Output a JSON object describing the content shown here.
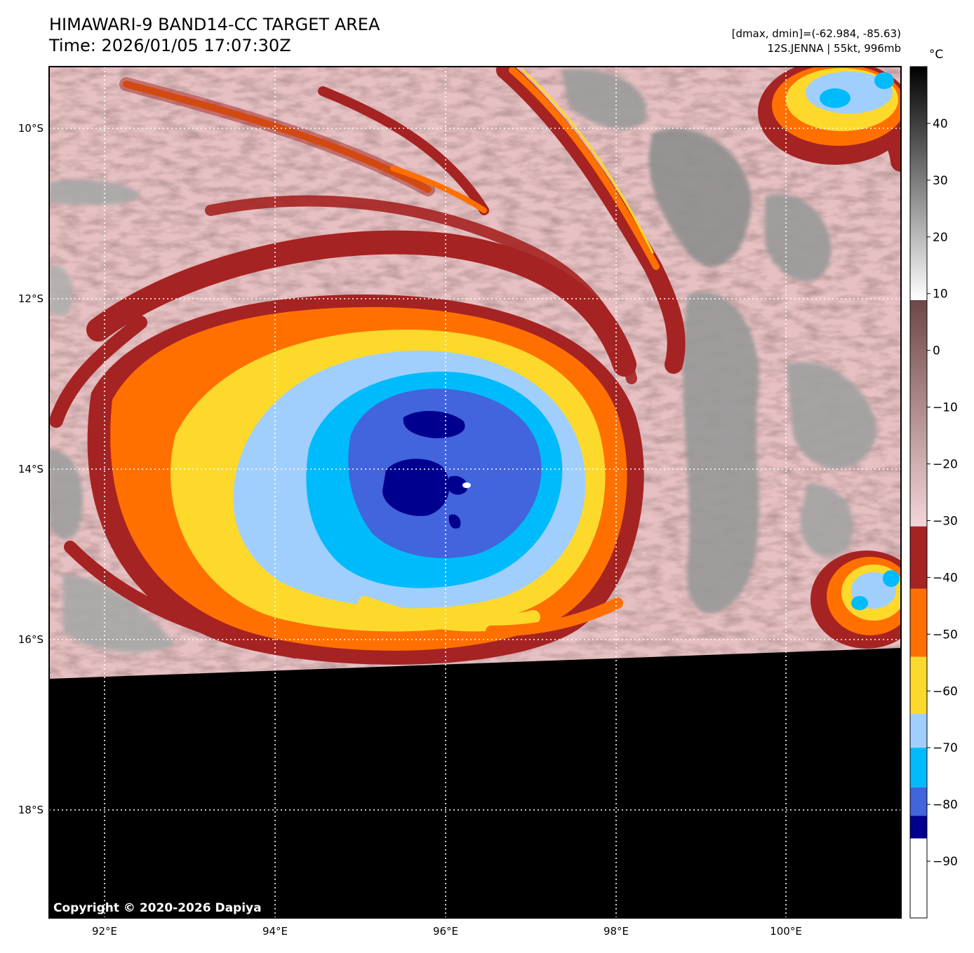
{
  "title": {
    "line1": "HIMAWARI-9 BAND14-CC TARGET AREA",
    "line2": "Time: 2026/01/05 17:07:30Z"
  },
  "info": {
    "line1": "[dmax, dmin]=(-62.984, -85.63)",
    "line2": "12S.JENNA | 55kt, 996mb"
  },
  "copyright": "Copyright © 2020-2026 Dapiya",
  "map": {
    "lon_range": [
      91.35,
      101.35
    ],
    "lat_range": [
      -9.3,
      -19.3
    ],
    "lat_ticks": [
      {
        "value": -10,
        "label": "10°S"
      },
      {
        "value": -12,
        "label": "12°S"
      },
      {
        "value": -14,
        "label": "14°S"
      },
      {
        "value": -16,
        "label": "16°S"
      },
      {
        "value": -18,
        "label": "18°S"
      }
    ],
    "lon_ticks": [
      {
        "value": 92,
        "label": "92°E"
      },
      {
        "value": 94,
        "label": "94°E"
      },
      {
        "value": 96,
        "label": "96°E"
      },
      {
        "value": 98,
        "label": "98°E"
      },
      {
        "value": 100,
        "label": "100°E"
      }
    ],
    "storm_center": {
      "lon": 95.8,
      "lat": -14.1
    }
  },
  "colorbar": {
    "unit": "°C",
    "range": [
      -100,
      50
    ],
    "ticks": [
      {
        "value": 40,
        "label": "40"
      },
      {
        "value": 30,
        "label": "30"
      },
      {
        "value": 20,
        "label": "20"
      },
      {
        "value": 10,
        "label": "10"
      },
      {
        "value": 0,
        "label": "0"
      },
      {
        "value": -10,
        "label": "−10"
      },
      {
        "value": -20,
        "label": "−20"
      },
      {
        "value": -30,
        "label": "−30"
      },
      {
        "value": -40,
        "label": "−40"
      },
      {
        "value": -50,
        "label": "−50"
      },
      {
        "value": -60,
        "label": "−60"
      },
      {
        "value": -70,
        "label": "−70"
      },
      {
        "value": -80,
        "label": "−80"
      },
      {
        "value": -90,
        "label": "−90"
      }
    ],
    "discrete_bands": [
      {
        "from": -31,
        "to": -42,
        "color": "#a52322"
      },
      {
        "from": -42,
        "to": -54,
        "color": "#ff7000"
      },
      {
        "from": -54,
        "to": -64,
        "color": "#fdd92c"
      },
      {
        "from": -64,
        "to": -70,
        "color": "#a1cffd"
      },
      {
        "from": -70,
        "to": -77,
        "color": "#00bbfb"
      },
      {
        "from": -77,
        "to": -82,
        "color": "#4264dc"
      },
      {
        "from": -82,
        "to": -86,
        "color": "#00008f"
      },
      {
        "from": -86,
        "to": -100,
        "color": "#ffffff"
      }
    ]
  },
  "colors": {
    "no_data": "#000000",
    "graticule": "#ffffff",
    "warm_cloud_pink": "#e8c2c4",
    "warm_cloud_brown": "#8c6a6a",
    "warm_gray": "#9a9a9a"
  }
}
